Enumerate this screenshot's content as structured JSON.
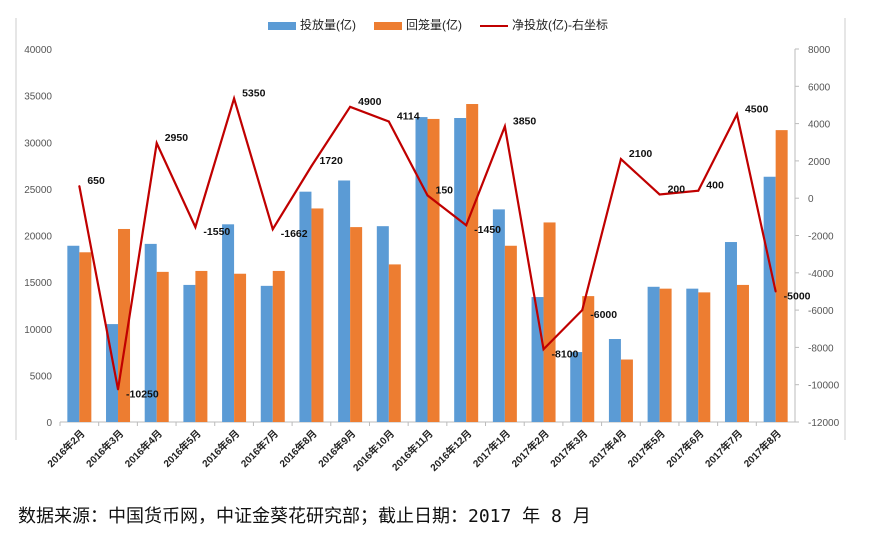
{
  "chart_data": {
    "type": "bar+line",
    "title": "",
    "categories": [
      "2016年2月",
      "2016年3月",
      "2016年4月",
      "2016年5月",
      "2016年6月",
      "2016年7月",
      "2016年8月",
      "2016年9月",
      "2016年10月",
      "2016年11月",
      "2016年12月",
      "2017年1月",
      "2017年2月",
      "2017年3月",
      "2017年4月",
      "2017年5月",
      "2017年6月",
      "2017年7月",
      "2017年8月"
    ],
    "series": [
      {
        "name": "投放量(亿)",
        "type": "bar",
        "axis": "left",
        "color": "#5b9bd5",
        "values": [
          18900,
          10500,
          19100,
          14700,
          21200,
          14600,
          24700,
          25900,
          21000,
          32700,
          32600,
          22800,
          13400,
          7500,
          8900,
          14500,
          14300,
          19300,
          26300
        ]
      },
      {
        "name": "回笼量(亿)",
        "type": "bar",
        "axis": "left",
        "color": "#ed7d31",
        "values": [
          18200,
          20700,
          16100,
          16200,
          15900,
          16200,
          22900,
          20900,
          16900,
          32500,
          34100,
          18900,
          21400,
          13500,
          6700,
          14300,
          13900,
          14700,
          31300
        ]
      },
      {
        "name": "净投放(亿)-右坐标",
        "type": "line",
        "axis": "right",
        "color": "#c00000",
        "values": [
          650,
          -10250,
          2950,
          -1550,
          5350,
          -1662,
          1720,
          4900,
          4114,
          150,
          -1450,
          3850,
          -8100,
          -6000,
          2100,
          200,
          400,
          4500,
          -5000
        ],
        "labels": [
          "650",
          "-10250",
          "2950",
          "-1550",
          "5350",
          "-1662",
          "1720",
          "4900",
          "4114",
          "150",
          "-1450",
          "3850",
          "-8100",
          "-6000",
          "2100",
          "200",
          "400",
          "4500",
          "-5000"
        ]
      }
    ],
    "ylim_left": [
      0,
      40000
    ],
    "yticks_left": [
      "0",
      "5000",
      "10000",
      "15000",
      "20000",
      "25000",
      "30000",
      "35000",
      "40000"
    ],
    "ylim_right": [
      -12000,
      8000
    ],
    "yticks_right": [
      "-12000",
      "-10000",
      "-8000",
      "-6000",
      "-4000",
      "-2000",
      "0",
      "2000",
      "4000",
      "6000",
      "8000"
    ],
    "legend": "top"
  },
  "source_note": "数据来源：中国货币网，中证金葵花研究部；截止日期：2017 年 8 月"
}
